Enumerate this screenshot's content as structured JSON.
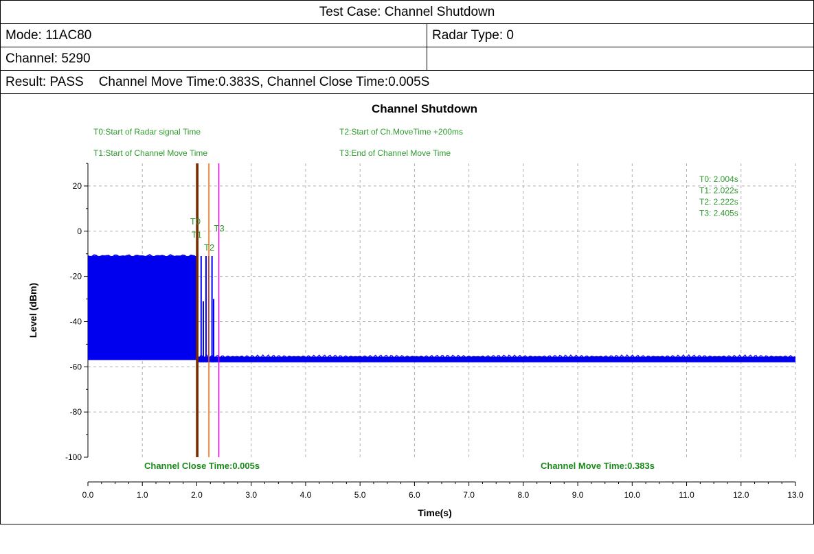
{
  "header": {
    "title": "Test Case: Channel Shutdown",
    "mode": "Mode: 11AC80",
    "radar_type": "Radar Type: 0",
    "channel": "Channel: 5290",
    "result": "Result: PASS",
    "result_detail": "Channel Move Time:0.383S, Channel Close Time:0.005S"
  },
  "chart_data": {
    "type": "line",
    "title": "Channel Shutdown",
    "xlabel": "Time(s)",
    "ylabel": "Level (dBm)",
    "xlim": [
      0,
      13
    ],
    "ylim": [
      -100,
      30
    ],
    "x_ticks": [
      "0.0",
      "1.0",
      "2.0",
      "3.0",
      "4.0",
      "5.0",
      "6.0",
      "7.0",
      "8.0",
      "9.0",
      "10.0",
      "11.0",
      "12.0",
      "13.0"
    ],
    "y_ticks": [
      "20",
      "0",
      "-20",
      "-40",
      "-60",
      "-80",
      "-100"
    ],
    "grid": true,
    "legend_notes": [
      "T0:Start of Radar signal Time",
      "T2:Start of Ch.MoveTime +200ms",
      "T1:Start of Channel Move Time",
      "T3:End of Channel Move Time"
    ],
    "markers": [
      {
        "name": "T0",
        "x": 2.004,
        "color": "#7a2a00",
        "label": "T0: 2.004s"
      },
      {
        "name": "T1",
        "x": 2.022,
        "color": "#7a2a00",
        "label": "T1: 2.022s"
      },
      {
        "name": "T2",
        "x": 2.222,
        "color": "#ff6600",
        "label": "T2: 2.222s"
      },
      {
        "name": "T3",
        "x": 2.405,
        "color": "#e000e0",
        "label": "T3: 2.405s"
      }
    ],
    "annotations": {
      "close_time": "Channel Close Time:0.005s",
      "move_time": "Channel Move Time:0.383s"
    },
    "series": [
      {
        "color": "#0000ee",
        "segments": [
          {
            "x_start": 0.0,
            "x_end": 2.004,
            "y_high": -11,
            "y_low": -57
          },
          {
            "x_start": 2.004,
            "x_end": 13.0,
            "y_high": -55.5,
            "y_low": -58
          }
        ],
        "bursts": [
          {
            "x": 2.08,
            "y": -11
          },
          {
            "x": 2.12,
            "y": -31
          },
          {
            "x": 2.17,
            "y": -11
          },
          {
            "x": 2.22,
            "y": -11
          },
          {
            "x": 2.28,
            "y": -11
          },
          {
            "x": 2.31,
            "y": -30
          }
        ]
      }
    ],
    "colors": {
      "trace": "#0000ee",
      "note_text": "#2e9b2e",
      "annotation_text": "#1a8a1a",
      "grid": "#b0b0b0"
    }
  }
}
